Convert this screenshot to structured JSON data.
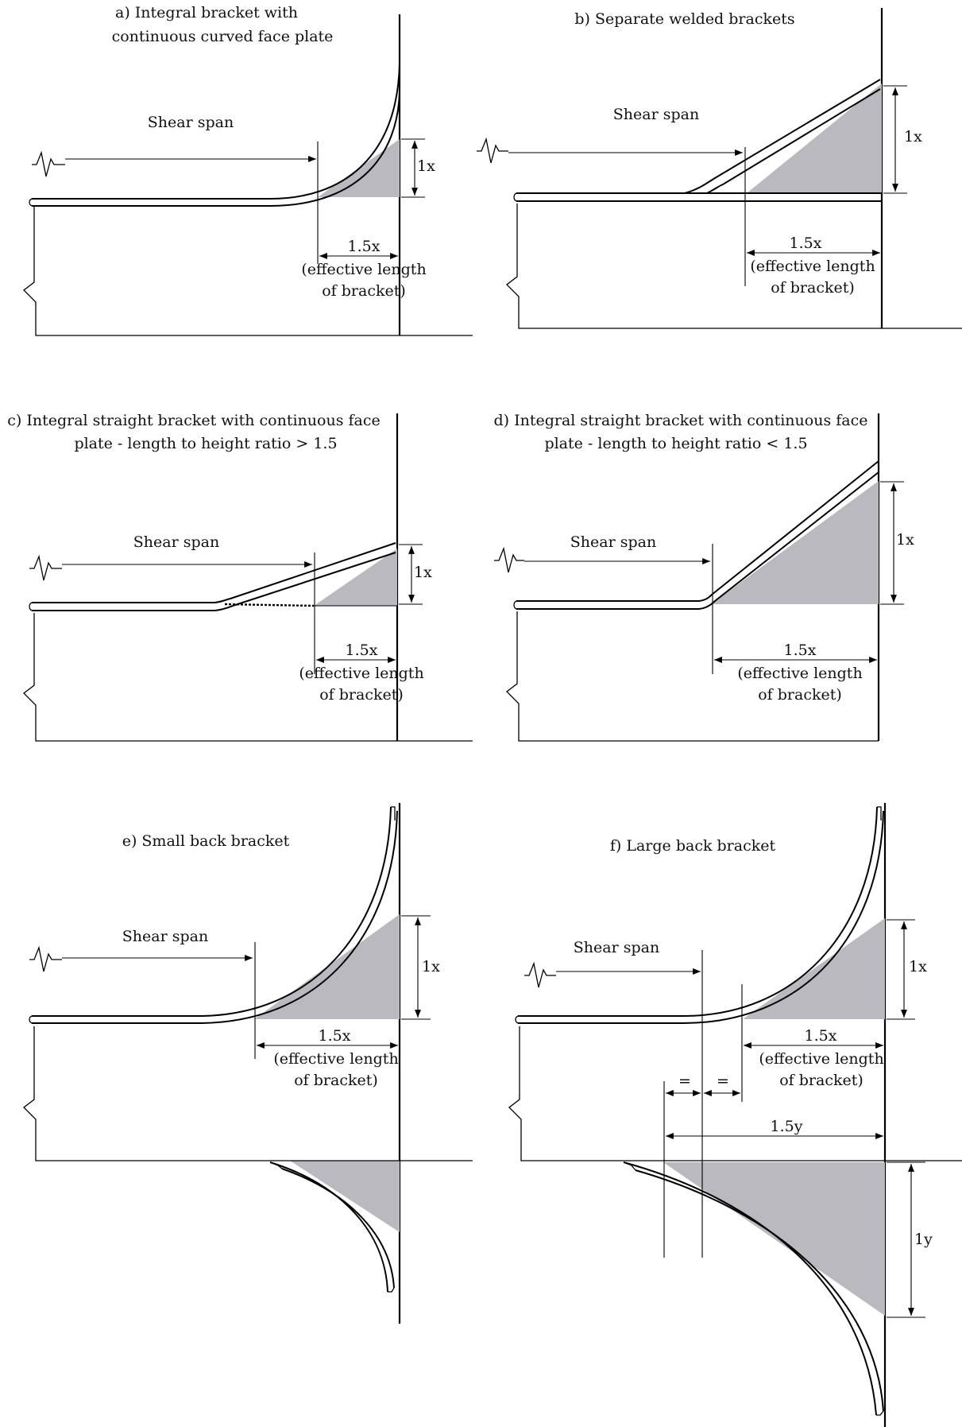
{
  "colors": {
    "shade": "#b9b9bf",
    "line": "#000000",
    "background": "#ffffff"
  },
  "panels": {
    "a": {
      "title_line1": "a)  Integral bracket with",
      "title_line2": "continuous curved face plate",
      "shear_span": "Shear span",
      "height_dim": "1x",
      "length_dim": "1.5x",
      "length_note1": "(effective length",
      "length_note2": "of bracket)"
    },
    "b": {
      "title_line1": "b)  Separate welded brackets",
      "shear_span": "Shear span",
      "height_dim": "1x",
      "length_dim": "1.5x",
      "length_note1": "(effective length",
      "length_note2": "of bracket)"
    },
    "c": {
      "title_line1": "c)  Integral straight bracket with continuous face",
      "title_line2": "plate - length to height ratio > 1.5",
      "shear_span": "Shear span",
      "height_dim": "1x",
      "length_dim": "1.5x",
      "length_note1": "(effective length",
      "length_note2": "of bracket)"
    },
    "d": {
      "title_line1": "d)  Integral straight bracket with continuous face",
      "title_line2": "plate - length to height ratio < 1.5",
      "shear_span": "Shear span",
      "height_dim": "1x",
      "length_dim": "1.5x",
      "length_note1": "(effective length",
      "length_note2": "of bracket)"
    },
    "e": {
      "title_line1": "e)  Small back bracket",
      "shear_span": "Shear span",
      "height_dim": "1x",
      "length_dim": "1.5x",
      "length_note1": "(effective length",
      "length_note2": "of bracket)"
    },
    "f": {
      "title_line1": "f)  Large back bracket",
      "shear_span": "Shear span",
      "height_dim": "1x",
      "length_dim": "1.5x",
      "length_note1": "(effective length",
      "length_note2": "of bracket)",
      "equal1": "=",
      "equal2": "=",
      "back_length_dim": "1.5y",
      "back_height_dim": "1y"
    }
  }
}
